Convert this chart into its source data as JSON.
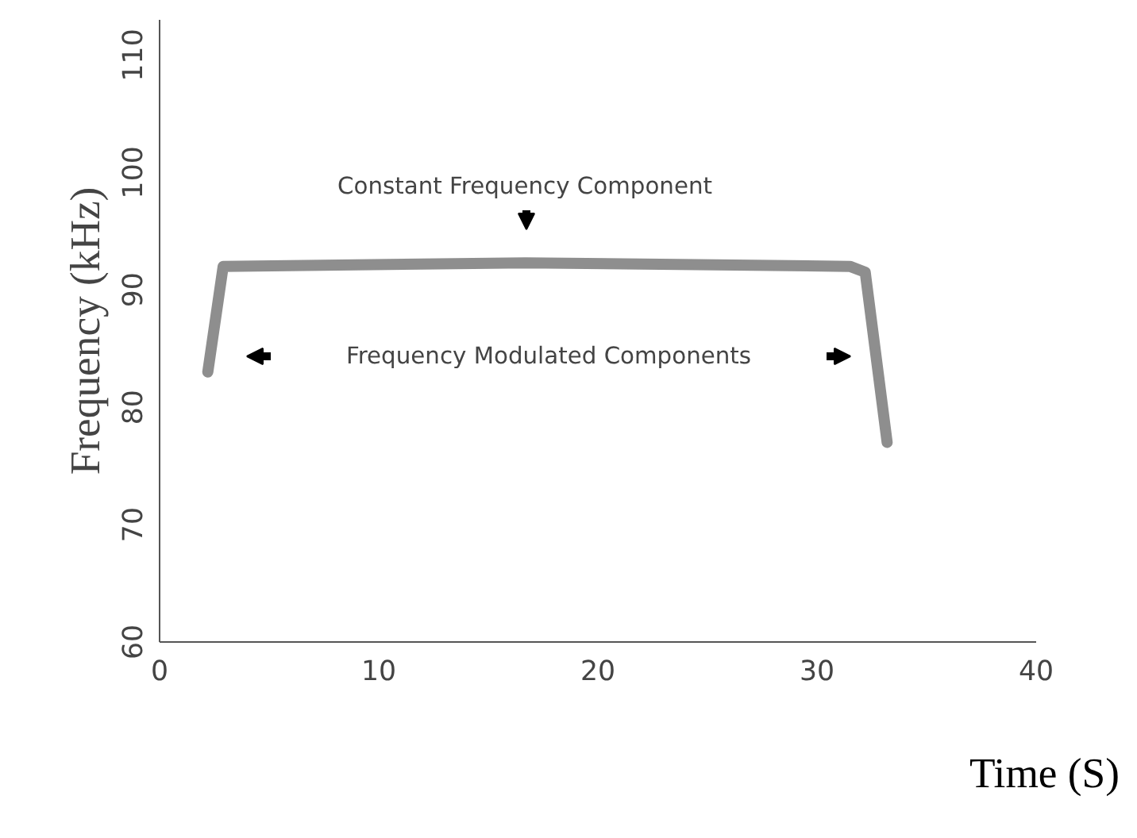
{
  "chart_data": {
    "type": "line",
    "xlabel": "Time (S)",
    "ylabel": "Frequency (kHz)",
    "x": [
      2.2,
      2.9,
      16.7,
      31.5,
      32.2,
      33.2
    ],
    "series": [
      {
        "color": "#7a7a7a",
        "values": [
          83,
          92,
          92.3,
          92,
          91.5,
          77
        ]
      }
    ],
    "xlim": [
      0,
      40
    ],
    "xticks": [
      0,
      10,
      20,
      30,
      40
    ],
    "ylim": [
      60,
      113
    ],
    "yticks": [
      60,
      70,
      80,
      90,
      100,
      110
    ],
    "grid": false,
    "marker": "none",
    "line_style": "solid",
    "annotations": [
      "Constant Frequency Component",
      "Frequency Modulated Components"
    ]
  }
}
